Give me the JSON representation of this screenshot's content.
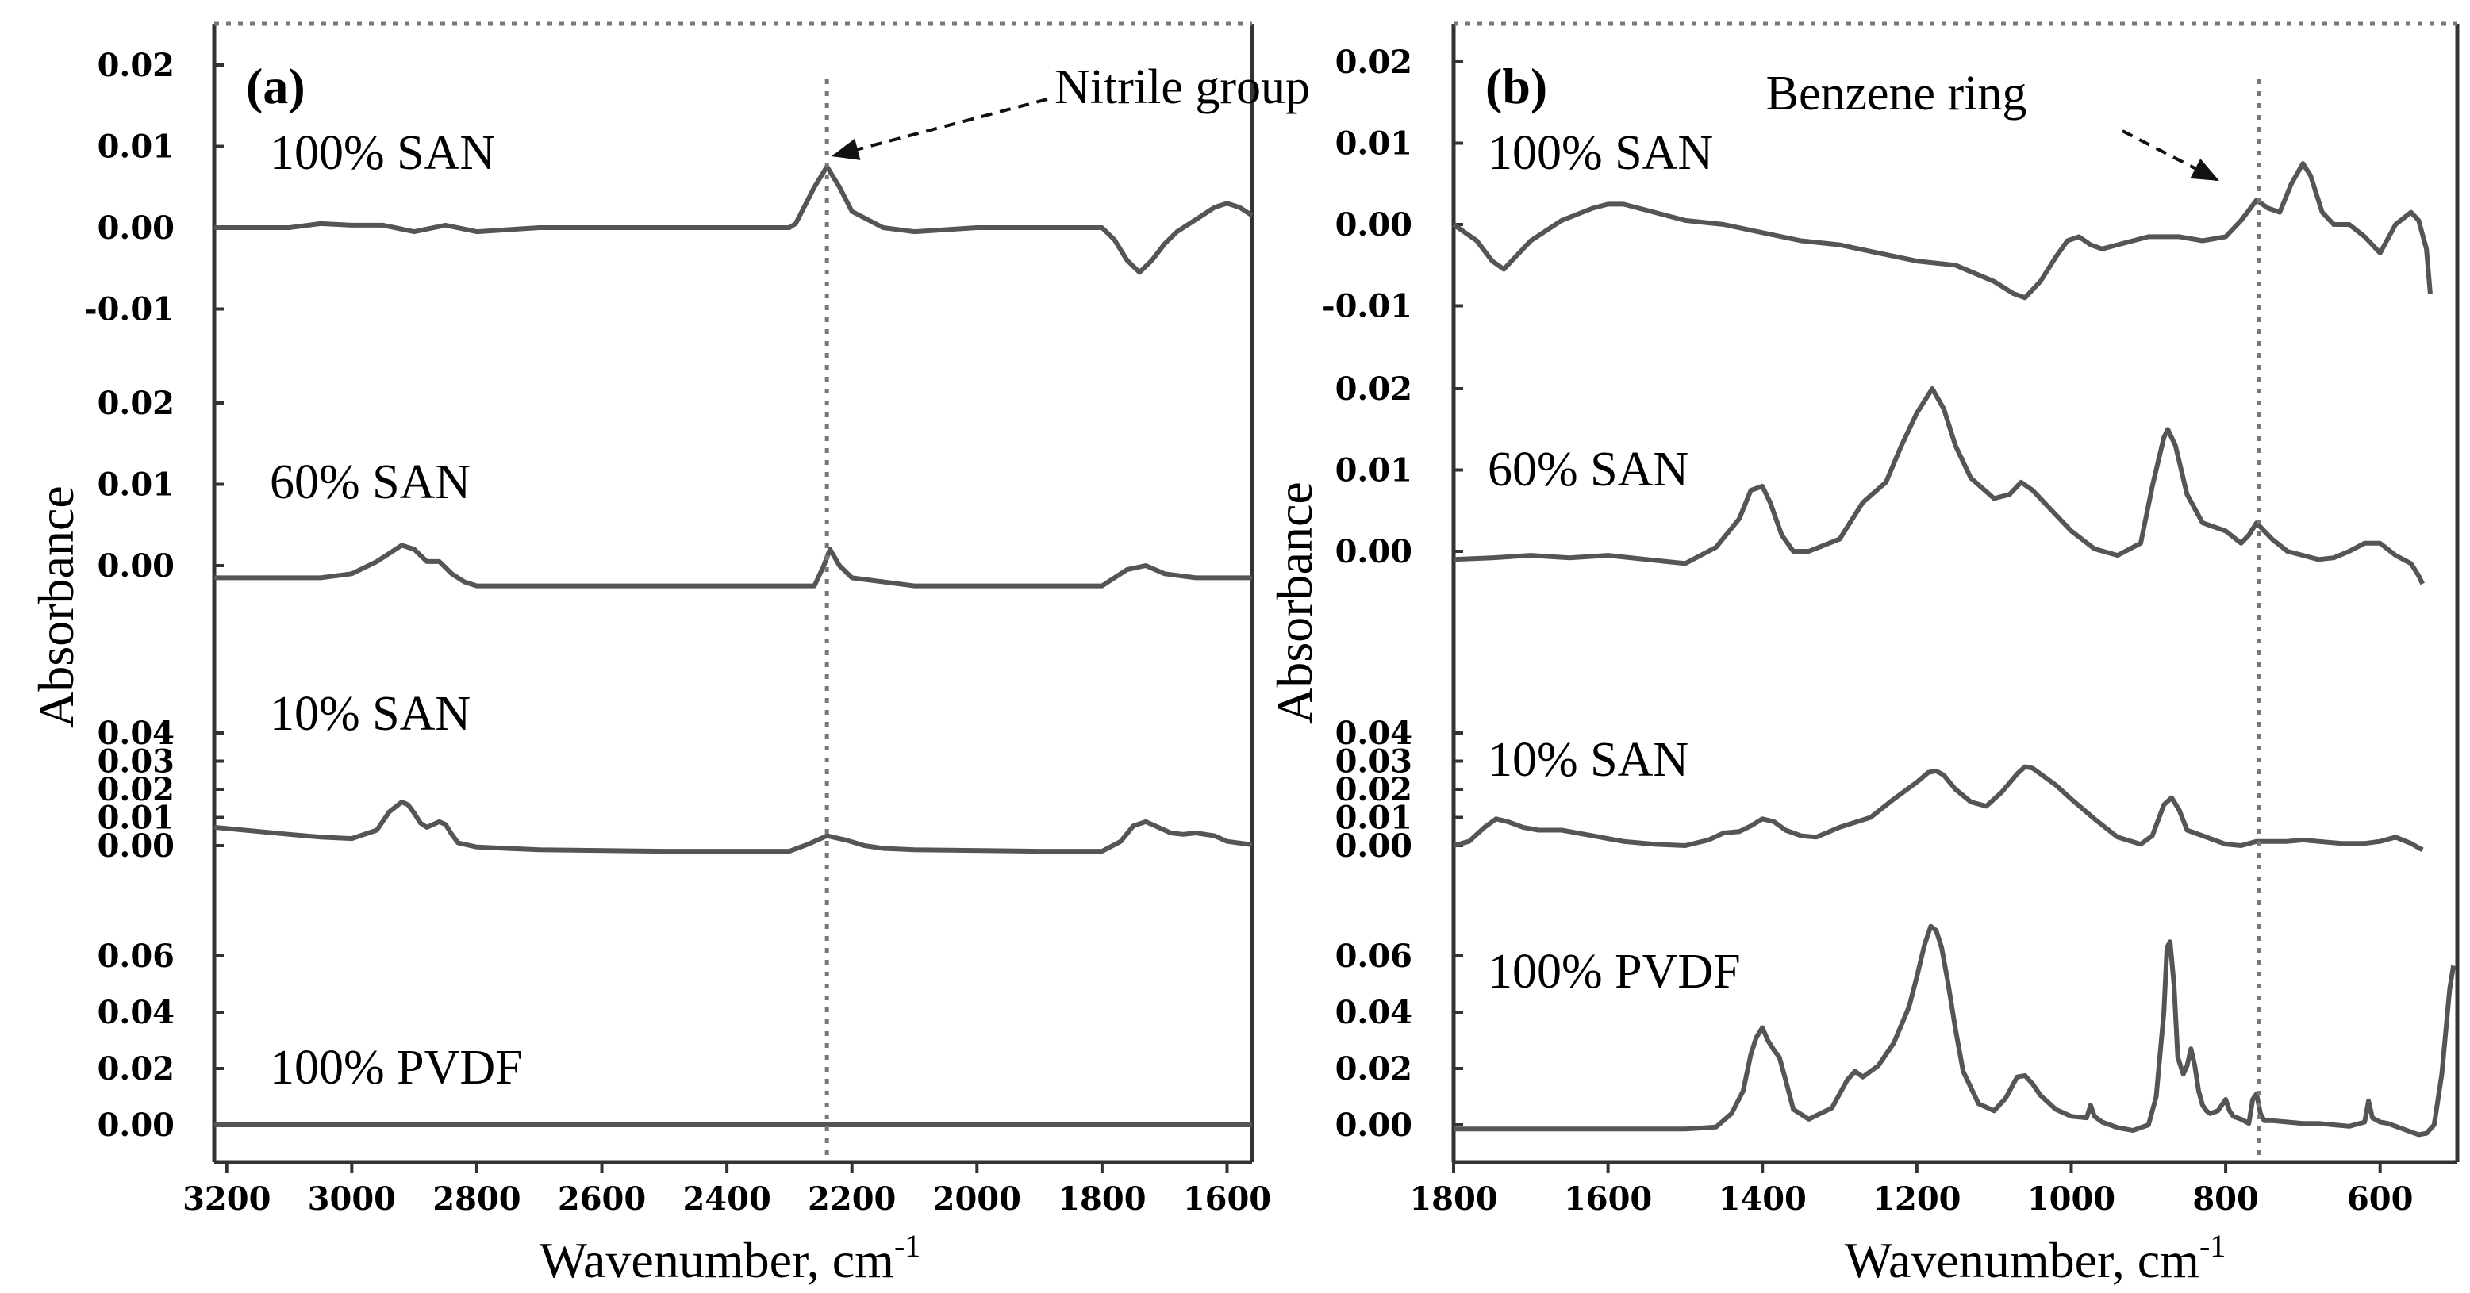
{
  "figure": {
    "ylabel": "Absorbance",
    "xlabel_main": "Wavenumber, cm",
    "xlabel_sup": "-1"
  },
  "chart_data": [
    {
      "type": "line",
      "panel_label": "(a)",
      "xlabel": "Wavenumber, cm-1",
      "ylabel": "Absorbance",
      "xlim": [
        3220,
        1560
      ],
      "x_ticks": [
        "3200",
        "3000",
        "2800",
        "2600",
        "2400",
        "2200",
        "2000",
        "1800",
        "1600"
      ],
      "annotation": {
        "text": "Nitrile group",
        "x": 2240
      },
      "series": [
        {
          "name": "100% SAN",
          "y_ticks": [
            "0.02",
            "0.01",
            "0.00",
            "-0.01"
          ],
          "ylim": [
            -0.017,
            0.026
          ],
          "x": [
            3220,
            3100,
            3050,
            3000,
            2950,
            2900,
            2850,
            2800,
            2700,
            2600,
            2500,
            2400,
            2300,
            2290,
            2260,
            2240,
            2220,
            2200,
            2150,
            2100,
            2000,
            1900,
            1800,
            1780,
            1760,
            1740,
            1720,
            1700,
            1680,
            1650,
            1620,
            1600,
            1580,
            1560
          ],
          "y": [
            0.0,
            0.0,
            0.0005,
            0.0003,
            0.0003,
            -0.0005,
            0.0003,
            -0.0005,
            0.0,
            0.0,
            0.0,
            0.0,
            0.0,
            0.0005,
            0.005,
            0.0075,
            0.005,
            0.002,
            0.0,
            -0.0005,
            0.0,
            0.0,
            0.0,
            -0.0015,
            -0.004,
            -0.0055,
            -0.004,
            -0.002,
            -0.0005,
            0.001,
            0.0025,
            0.003,
            0.0025,
            0.0015
          ]
        },
        {
          "name": "60% SAN",
          "y_ticks": [
            "0.02",
            "0.01",
            "0.00"
          ],
          "ylim": [
            -0.004,
            0.026
          ],
          "x": [
            3220,
            3050,
            3000,
            2960,
            2920,
            2900,
            2880,
            2860,
            2840,
            2820,
            2800,
            2600,
            2400,
            2260,
            2245,
            2235,
            2220,
            2200,
            2100,
            1900,
            1800,
            1760,
            1730,
            1700,
            1650,
            1600,
            1560
          ],
          "y": [
            -0.0015,
            -0.0015,
            -0.001,
            0.0005,
            0.0025,
            0.002,
            0.0005,
            0.0005,
            -0.001,
            -0.002,
            -0.0025,
            -0.0025,
            -0.0025,
            -0.0025,
            0.0,
            0.002,
            0.0,
            -0.0015,
            -0.0025,
            -0.0025,
            -0.0025,
            -0.0005,
            0.0,
            -0.001,
            -0.0015,
            -0.0015,
            -0.0015
          ]
        },
        {
          "name": "10% SAN",
          "y_ticks": [
            "0.04",
            "0.03",
            "0.02",
            "0.01",
            "0.00"
          ],
          "ylim": [
            -0.006,
            0.045
          ],
          "x": [
            3220,
            3100,
            3050,
            3000,
            2960,
            2940,
            2920,
            2910,
            2900,
            2890,
            2880,
            2870,
            2860,
            2850,
            2840,
            2830,
            2800,
            2700,
            2500,
            2300,
            2270,
            2240,
            2210,
            2180,
            2150,
            2100,
            1900,
            1800,
            1770,
            1750,
            1730,
            1710,
            1690,
            1670,
            1650,
            1620,
            1600,
            1560
          ],
          "y": [
            0.0065,
            0.004,
            0.003,
            0.0025,
            0.0055,
            0.012,
            0.0155,
            0.0145,
            0.0115,
            0.008,
            0.0065,
            0.0075,
            0.0085,
            0.0075,
            0.004,
            0.001,
            -0.0005,
            -0.0015,
            -0.002,
            -0.002,
            0.0005,
            0.0035,
            0.002,
            0.0,
            -0.001,
            -0.0015,
            -0.002,
            -0.002,
            0.0015,
            0.007,
            0.0085,
            0.0065,
            0.0045,
            0.004,
            0.0045,
            0.0035,
            0.0015,
            0.0003
          ]
        },
        {
          "name": "100% PVDF",
          "y_ticks": [
            "0.06",
            "0.04",
            "0.02",
            "0.00"
          ],
          "ylim": [
            -0.005,
            0.072
          ],
          "x": [
            3220,
            2800,
            2400,
            2000,
            1800,
            1600,
            1560
          ],
          "y": [
            0.0,
            0.0,
            0.0,
            0.0,
            0.0,
            0.0,
            0.0
          ]
        }
      ]
    },
    {
      "type": "line",
      "panel_label": "(b)",
      "xlabel": "Wavenumber, cm-1",
      "ylabel": "Absorbance",
      "xlim": [
        1800,
        500
      ],
      "x_ticks": [
        "1800",
        "1600",
        "1400",
        "1200",
        "1000",
        "800",
        "600"
      ],
      "annotation": {
        "text": "Benzene ring",
        "x": 757
      },
      "series": [
        {
          "name": "100% SAN",
          "y_ticks": [
            "0.02",
            "0.01",
            "0.00",
            "-0.01"
          ],
          "ylim": [
            -0.017,
            0.026
          ],
          "x": [
            1800,
            1770,
            1750,
            1735,
            1720,
            1700,
            1660,
            1620,
            1600,
            1580,
            1540,
            1500,
            1450,
            1400,
            1350,
            1300,
            1250,
            1200,
            1150,
            1100,
            1075,
            1060,
            1040,
            1020,
            1005,
            990,
            975,
            960,
            940,
            920,
            900,
            860,
            830,
            800,
            780,
            760,
            745,
            730,
            715,
            700,
            690,
            675,
            660,
            640,
            620,
            600,
            580,
            560,
            550,
            540,
            535
          ],
          "y": [
            0.0,
            -0.002,
            -0.0045,
            -0.0055,
            -0.004,
            -0.002,
            0.0005,
            0.002,
            0.0025,
            0.0025,
            0.0015,
            0.0005,
            0.0,
            -0.001,
            -0.002,
            -0.0025,
            -0.0035,
            -0.0045,
            -0.005,
            -0.007,
            -0.0085,
            -0.009,
            -0.007,
            -0.004,
            -0.002,
            -0.0015,
            -0.0025,
            -0.003,
            -0.0025,
            -0.002,
            -0.0015,
            -0.0015,
            -0.002,
            -0.0015,
            0.0005,
            0.003,
            0.002,
            0.0015,
            0.005,
            0.0075,
            0.006,
            0.0015,
            0.0,
            0.0,
            -0.0015,
            -0.0035,
            0.0,
            0.0015,
            0.0005,
            -0.003,
            -0.0085
          ]
        },
        {
          "name": "60% SAN",
          "y_ticks": [
            "0.02",
            "0.01",
            "0.00"
          ],
          "ylim": [
            -0.004,
            0.026
          ],
          "x": [
            1800,
            1750,
            1700,
            1650,
            1600,
            1550,
            1500,
            1460,
            1430,
            1415,
            1400,
            1390,
            1375,
            1360,
            1340,
            1300,
            1270,
            1240,
            1220,
            1200,
            1180,
            1165,
            1150,
            1130,
            1100,
            1080,
            1065,
            1050,
            1020,
            1000,
            970,
            940,
            910,
            895,
            880,
            875,
            865,
            850,
            830,
            800,
            780,
            770,
            760,
            750,
            740,
            720,
            700,
            680,
            660,
            640,
            620,
            600,
            580,
            560,
            550,
            545
          ],
          "y": [
            -0.001,
            -0.0008,
            -0.0005,
            -0.0008,
            -0.0005,
            -0.001,
            -0.0015,
            0.0005,
            0.004,
            0.0075,
            0.008,
            0.006,
            0.002,
            0.0,
            0.0,
            0.0015,
            0.006,
            0.0085,
            0.013,
            0.017,
            0.02,
            0.0175,
            0.013,
            0.009,
            0.0065,
            0.007,
            0.0085,
            0.0075,
            0.0045,
            0.0025,
            0.0003,
            -0.0005,
            0.001,
            0.008,
            0.014,
            0.015,
            0.013,
            0.007,
            0.0035,
            0.0025,
            0.001,
            0.002,
            0.0035,
            0.0025,
            0.0015,
            0.0,
            -0.0005,
            -0.001,
            -0.0008,
            0.0,
            0.001,
            0.001,
            -0.0005,
            -0.0015,
            -0.003,
            -0.004
          ]
        },
        {
          "name": "10% SAN",
          "y_ticks": [
            "0.04",
            "0.03",
            "0.02",
            "0.01",
            "0.00"
          ],
          "ylim": [
            -0.006,
            0.045
          ],
          "x": [
            1800,
            1780,
            1760,
            1745,
            1730,
            1710,
            1690,
            1660,
            1620,
            1580,
            1540,
            1500,
            1470,
            1450,
            1430,
            1415,
            1400,
            1385,
            1370,
            1350,
            1330,
            1300,
            1260,
            1230,
            1200,
            1185,
            1175,
            1165,
            1150,
            1130,
            1110,
            1090,
            1070,
            1060,
            1050,
            1040,
            1020,
            1000,
            970,
            940,
            910,
            895,
            880,
            870,
            860,
            850,
            840,
            820,
            800,
            780,
            760,
            740,
            720,
            700,
            680,
            650,
            620,
            600,
            580,
            560,
            550,
            545
          ],
          "y": [
            0.0,
            0.0015,
            0.0065,
            0.0095,
            0.0085,
            0.0065,
            0.0055,
            0.0055,
            0.0035,
            0.0015,
            0.0005,
            0.0,
            0.002,
            0.0045,
            0.005,
            0.007,
            0.0095,
            0.0085,
            0.0055,
            0.0035,
            0.003,
            0.0065,
            0.01,
            0.0165,
            0.0225,
            0.026,
            0.0265,
            0.025,
            0.02,
            0.0155,
            0.014,
            0.019,
            0.0255,
            0.028,
            0.0275,
            0.0255,
            0.0215,
            0.0165,
            0.0095,
            0.003,
            0.0005,
            0.0035,
            0.0145,
            0.017,
            0.0125,
            0.0055,
            0.0045,
            0.0025,
            0.0005,
            0.0,
            0.0015,
            0.0015,
            0.0015,
            0.002,
            0.0015,
            0.0008,
            0.0008,
            0.0015,
            0.003,
            0.0008,
            -0.0008,
            -0.0015
          ]
        },
        {
          "name": "100% PVDF",
          "y_ticks": [
            "0.06",
            "0.04",
            "0.02",
            "0.00"
          ],
          "ylim": [
            -0.005,
            0.072
          ],
          "x": [
            1800,
            1700,
            1600,
            1500,
            1460,
            1440,
            1425,
            1415,
            1408,
            1400,
            1393,
            1385,
            1378,
            1370,
            1360,
            1340,
            1310,
            1290,
            1280,
            1270,
            1250,
            1230,
            1210,
            1200,
            1190,
            1182,
            1175,
            1168,
            1160,
            1150,
            1140,
            1120,
            1100,
            1085,
            1070,
            1060,
            1050,
            1040,
            1020,
            1000,
            980,
            975,
            970,
            960,
            940,
            920,
            900,
            890,
            880,
            876,
            872,
            867,
            862,
            855,
            850,
            845,
            840,
            835,
            830,
            825,
            820,
            810,
            800,
            795,
            790,
            780,
            770,
            765,
            760,
            755,
            750,
            740,
            720,
            700,
            680,
            660,
            640,
            620,
            615,
            610,
            600,
            590,
            580,
            570,
            560,
            550,
            540,
            530,
            520,
            510,
            505
          ],
          "y": [
            -0.0015,
            -0.0015,
            -0.0015,
            -0.0015,
            -0.0008,
            0.004,
            0.012,
            0.025,
            0.031,
            0.0345,
            0.03,
            0.0265,
            0.024,
            0.016,
            0.0055,
            0.002,
            0.006,
            0.016,
            0.019,
            0.017,
            0.021,
            0.029,
            0.042,
            0.0525,
            0.064,
            0.0705,
            0.069,
            0.063,
            0.051,
            0.034,
            0.019,
            0.0075,
            0.005,
            0.0095,
            0.017,
            0.0175,
            0.0145,
            0.0105,
            0.0055,
            0.003,
            0.0025,
            0.007,
            0.003,
            0.001,
            -0.001,
            -0.002,
            0.0,
            0.01,
            0.04,
            0.063,
            0.065,
            0.05,
            0.024,
            0.018,
            0.021,
            0.027,
            0.021,
            0.012,
            0.007,
            0.005,
            0.004,
            0.005,
            0.009,
            0.005,
            0.003,
            0.002,
            0.0005,
            0.009,
            0.011,
            0.004,
            0.0015,
            0.0015,
            0.001,
            0.0005,
            0.0005,
            0.0,
            -0.0005,
            0.001,
            0.0085,
            0.0025,
            0.001,
            0.0005,
            -0.0005,
            -0.0015,
            -0.0025,
            -0.0035,
            -0.003,
            0.0,
            0.018,
            0.048,
            0.0565
          ]
        }
      ]
    }
  ]
}
